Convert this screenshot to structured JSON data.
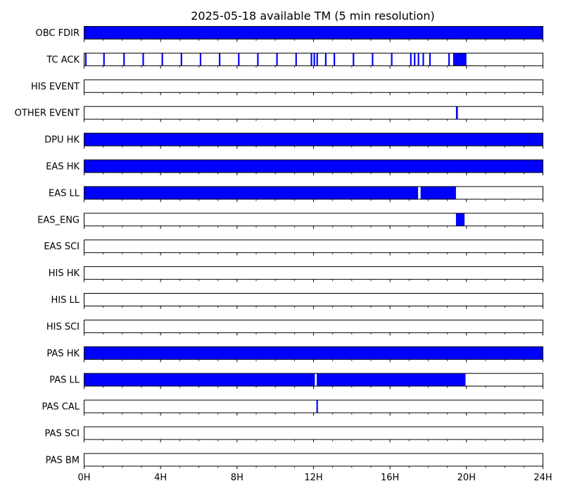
{
  "chart_data": {
    "type": "timeline",
    "title": "2025-05-18 available TM (5 min resolution)",
    "xlabel": "",
    "ylabel": "",
    "x_unit": "hours",
    "xlim": [
      0,
      24
    ],
    "x_ticks": [
      {
        "value": 0,
        "label": "0H"
      },
      {
        "value": 4,
        "label": "4H"
      },
      {
        "value": 8,
        "label": "8H"
      },
      {
        "value": 12,
        "label": "12H"
      },
      {
        "value": 16,
        "label": "16H"
      },
      {
        "value": 20,
        "label": "20H"
      },
      {
        "value": 24,
        "label": "24H"
      }
    ],
    "minor_tick_step_hours": 1,
    "grid": false,
    "colors": {
      "available": "#0000ff",
      "frame": "#000000"
    },
    "series": [
      {
        "name": "OBC FDIR",
        "intervals": [
          [
            0,
            24
          ]
        ]
      },
      {
        "name": "TC ACK",
        "intervals": [
          [
            0.05,
            0.13
          ],
          [
            1.0,
            1.08
          ],
          [
            2.05,
            2.13
          ],
          [
            3.05,
            3.13
          ],
          [
            4.05,
            4.13
          ],
          [
            5.05,
            5.13
          ],
          [
            6.05,
            6.13
          ],
          [
            7.05,
            7.13
          ],
          [
            8.05,
            8.13
          ],
          [
            9.05,
            9.13
          ],
          [
            10.05,
            10.13
          ],
          [
            11.05,
            11.13
          ],
          [
            11.85,
            11.93
          ],
          [
            12.0,
            12.08
          ],
          [
            12.15,
            12.23
          ],
          [
            12.6,
            12.68
          ],
          [
            13.05,
            13.13
          ],
          [
            14.05,
            14.13
          ],
          [
            15.05,
            15.13
          ],
          [
            16.05,
            16.13
          ],
          [
            17.05,
            17.13
          ],
          [
            17.25,
            17.33
          ],
          [
            17.45,
            17.53
          ],
          [
            17.7,
            17.78
          ],
          [
            18.05,
            18.13
          ],
          [
            19.05,
            19.13
          ],
          [
            19.3,
            20.0
          ]
        ]
      },
      {
        "name": "HIS EVENT",
        "intervals": []
      },
      {
        "name": "OTHER EVENT",
        "intervals": [
          [
            19.45,
            19.55
          ]
        ]
      },
      {
        "name": "DPU HK",
        "intervals": [
          [
            0,
            24
          ]
        ]
      },
      {
        "name": "EAS HK",
        "intervals": [
          [
            0,
            24
          ]
        ]
      },
      {
        "name": "EAS LL",
        "intervals": [
          [
            0,
            17.47
          ],
          [
            17.6,
            19.45
          ]
        ]
      },
      {
        "name": "EAS_ENG",
        "intervals": [
          [
            19.45,
            19.9
          ]
        ]
      },
      {
        "name": "EAS SCI",
        "intervals": []
      },
      {
        "name": "HIS HK",
        "intervals": []
      },
      {
        "name": "HIS LL",
        "intervals": []
      },
      {
        "name": "HIS SCI",
        "intervals": []
      },
      {
        "name": "PAS HK",
        "intervals": [
          [
            0,
            24
          ]
        ]
      },
      {
        "name": "PAS LL",
        "intervals": [
          [
            0,
            12.07
          ],
          [
            12.17,
            19.95
          ]
        ]
      },
      {
        "name": "PAS CAL",
        "intervals": [
          [
            12.15,
            12.23
          ]
        ]
      },
      {
        "name": "PAS SCI",
        "intervals": []
      },
      {
        "name": "PAS BM",
        "intervals": []
      }
    ]
  }
}
